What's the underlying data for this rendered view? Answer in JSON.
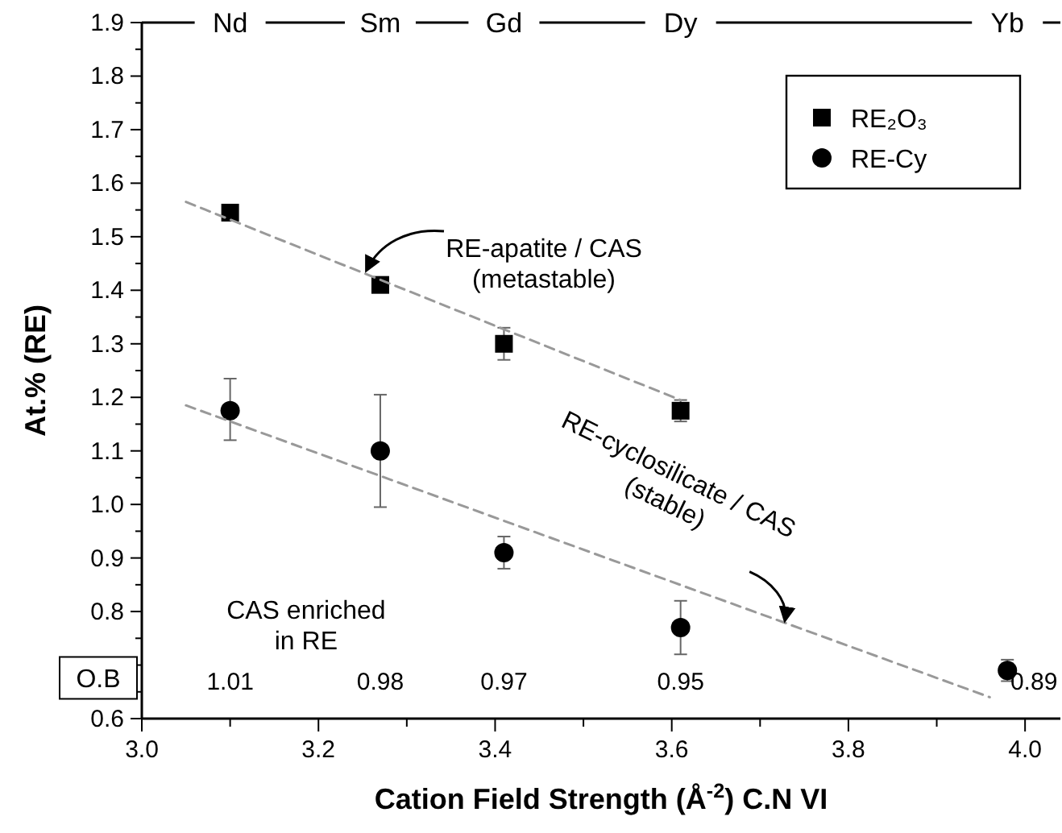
{
  "chart_data": {
    "type": "scatter",
    "xlabel": "Cation Field Strength (Å$^{-2}$) C.N VI",
    "ylabel": "At.% (RE)",
    "xlim": [
      3.0,
      4.04
    ],
    "ylim": [
      0.6,
      1.9
    ],
    "xticks": [
      {
        "value": 3.0,
        "label": "3.0"
      },
      {
        "value": 3.1,
        "label": null
      },
      {
        "value": 3.2,
        "label": "3.2"
      },
      {
        "value": 3.3,
        "label": null
      },
      {
        "value": 3.4,
        "label": "3.4"
      },
      {
        "value": 3.5,
        "label": null
      },
      {
        "value": 3.6,
        "label": "3.6"
      },
      {
        "value": 3.7,
        "label": null
      },
      {
        "value": 3.8,
        "label": "3.8"
      },
      {
        "value": 3.9,
        "label": null
      },
      {
        "value": 4.0,
        "label": "4.0"
      }
    ],
    "yticks": [
      {
        "value": 0.6,
        "label": "0.6"
      },
      {
        "value": 0.7,
        "label": null
      },
      {
        "value": 0.8,
        "label": "0.8"
      },
      {
        "value": 0.9,
        "label": "0.9"
      },
      {
        "value": 1.0,
        "label": "1.0"
      },
      {
        "value": 1.1,
        "label": "1.1"
      },
      {
        "value": 1.2,
        "label": "1.2"
      },
      {
        "value": 1.3,
        "label": "1.3"
      },
      {
        "value": 1.4,
        "label": "1.4"
      },
      {
        "value": 1.5,
        "label": "1.5"
      },
      {
        "value": 1.6,
        "label": "1.6"
      },
      {
        "value": 1.7,
        "label": "1.7"
      },
      {
        "value": 1.8,
        "label": "1.8"
      },
      {
        "value": 1.9,
        "label": "1.9"
      }
    ],
    "grid": false,
    "legend": "top right",
    "series": [
      {
        "name": "RE₂O₃",
        "color": "#000000",
        "marker": "square",
        "x": [
          3.1,
          3.27,
          3.41,
          3.61
        ],
        "values": [
          1.545,
          1.41,
          1.3,
          1.175
        ],
        "errors": [
          [
            1.53,
            1.56
          ],
          [
            1.4,
            1.42
          ],
          [
            1.27,
            1.33
          ],
          [
            1.155,
            1.195
          ]
        ]
      },
      {
        "name": "RE-Cy",
        "color": "#000000",
        "marker": "circle",
        "x": [
          3.1,
          3.27,
          3.41,
          3.61,
          3.98
        ],
        "values": [
          1.175,
          1.1,
          0.91,
          0.77,
          0.69
        ],
        "errors": [
          [
            1.12,
            1.235
          ],
          [
            0.995,
            1.205
          ],
          [
            0.88,
            0.94
          ],
          [
            0.72,
            0.82
          ],
          [
            0.67,
            0.71
          ]
        ]
      },
      {
        "type": "line",
        "color": "#999999",
        "line_style": "dashed",
        "x": [
          3.05,
          3.61
        ],
        "values": [
          1.565,
          1.195
        ]
      },
      {
        "type": "line",
        "color": "#999999",
        "line_style": "dashed",
        "x": [
          3.05,
          3.96
        ],
        "values": [
          1.185,
          0.64
        ]
      }
    ],
    "annotations": [
      "O.B",
      {
        "text": "RE-apatite / CAS\n(metastable)",
        "x": 3.26,
        "y": 1.426
      },
      {
        "text": "RE-cyclosilicate / CAS\n(stable)",
        "x": 3.73,
        "y": 0.778
      },
      "CAS enriched\nin RE",
      "1.01",
      "0.98",
      "0.97",
      "0.95",
      "0.89",
      "Nd",
      "Sm",
      "Gd",
      "Dy",
      "Yb"
    ]
  }
}
